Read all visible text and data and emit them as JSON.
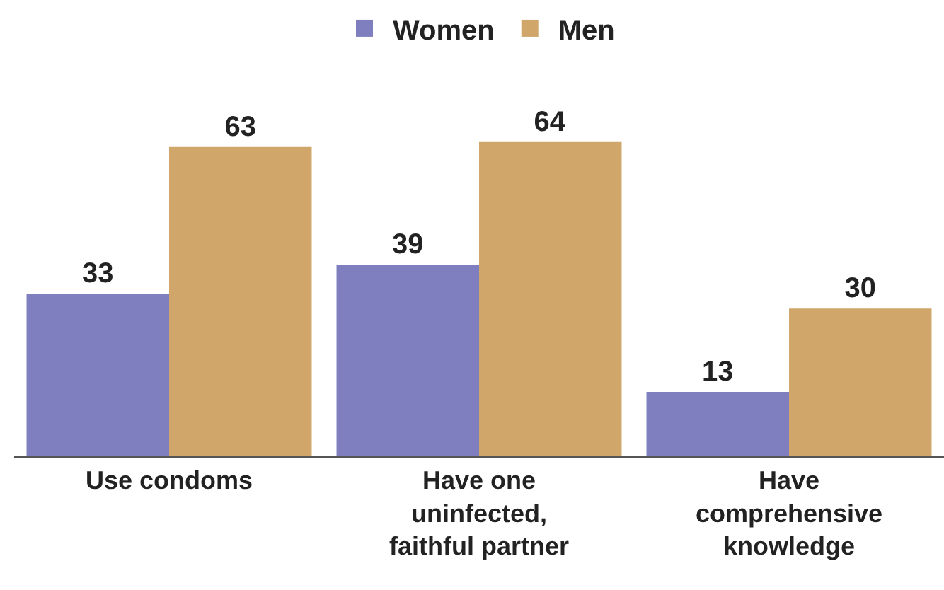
{
  "chart_data": {
    "type": "bar",
    "categories": [
      "Use condoms",
      "Have one\nuninfected,\nfaithful partner",
      "Have\ncomprehensive\nknowledge"
    ],
    "series": [
      {
        "name": "Women",
        "color": "#7f7fbf",
        "values": [
          33,
          39,
          13
        ]
      },
      {
        "name": "Men",
        "color": "#d0a66a",
        "values": [
          63,
          64,
          30
        ]
      }
    ],
    "data_labels": true,
    "legend": "top"
  }
}
